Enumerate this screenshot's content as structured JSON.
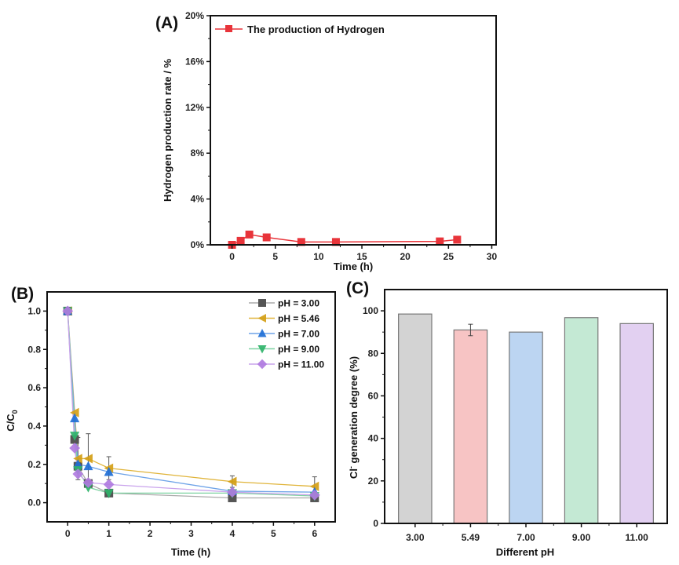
{
  "chart_data": [
    {
      "id": "A",
      "type": "line",
      "panel_label": "(A)",
      "title": "",
      "xlabel": "Time (h)",
      "ylabel": "Hydrogen production rate / %",
      "xlim": [
        -2.5,
        30.5
      ],
      "ylim": [
        0,
        20
      ],
      "xticks": [
        0,
        5,
        10,
        15,
        20,
        25,
        30
      ],
      "xtick_labels": [
        "0",
        "5",
        "10",
        "15",
        "20",
        "25",
        "30"
      ],
      "yticks": [
        0,
        4,
        8,
        12,
        16,
        20
      ],
      "ytick_labels": [
        "0%",
        "4%",
        "8%",
        "12%",
        "16%",
        "20%"
      ],
      "grid": false,
      "legend_position": "top-left",
      "series": [
        {
          "name": "The production of Hydrogen",
          "color": "#e8343a",
          "marker": "square",
          "x": [
            0,
            1,
            2,
            4,
            8,
            12,
            24,
            26
          ],
          "values": [
            0.0,
            0.35,
            0.9,
            0.65,
            0.25,
            0.25,
            0.3,
            0.45
          ]
        }
      ]
    },
    {
      "id": "B",
      "type": "line",
      "panel_label": "(B)",
      "title": "",
      "xlabel": "Time (h)",
      "ylabel": "C/C0",
      "ylabel_main": "C/C",
      "ylabel_sub": "0",
      "xlim": [
        -0.5,
        6.5
      ],
      "ylim": [
        -0.1,
        1.1
      ],
      "xticks": [
        0,
        1,
        2,
        3,
        4,
        5,
        6
      ],
      "xtick_labels": [
        "0",
        "1",
        "2",
        "3",
        "4",
        "5",
        "6"
      ],
      "yticks": [
        0.0,
        0.2,
        0.4,
        0.6,
        0.8,
        1.0
      ],
      "ytick_labels": [
        "0.0",
        "0.2",
        "0.4",
        "0.6",
        "0.8",
        "1.0"
      ],
      "grid": false,
      "legend_position": "top-right",
      "x": [
        0,
        0.17,
        0.25,
        0.5,
        1,
        4,
        6
      ],
      "series": [
        {
          "name": "pH = 3.00",
          "color": "#555555",
          "line_color": "#aaaaaa",
          "marker": "square",
          "values": [
            1.0,
            0.33,
            0.19,
            0.1,
            0.05,
            0.025,
            0.025
          ]
        },
        {
          "name": "pH = 5.46",
          "color": "#d4a017",
          "line_color": "#e0b43a",
          "marker": "triangle-left",
          "values": [
            1.0,
            0.47,
            0.23,
            0.23,
            0.18,
            0.11,
            0.085
          ],
          "error": [
            0,
            0,
            0.11,
            0.13,
            0.06,
            0.03,
            0.05
          ]
        },
        {
          "name": "pH = 7.00",
          "color": "#1f6fd6",
          "line_color": "#6fa4e8",
          "marker": "triangle-up",
          "values": [
            1.0,
            0.44,
            0.2,
            0.19,
            0.16,
            0.06,
            0.055
          ]
        },
        {
          "name": "pH = 9.00",
          "color": "#2fb36a",
          "line_color": "#7fd3a2",
          "marker": "triangle-down",
          "values": [
            1.0,
            0.35,
            0.17,
            0.08,
            0.05,
            0.05,
            0.035
          ]
        },
        {
          "name": "pH = 11.00",
          "color": "#b07be0",
          "line_color": "#c9a3ec",
          "marker": "diamond",
          "values": [
            1.0,
            0.285,
            0.15,
            0.105,
            0.095,
            0.055,
            0.04
          ]
        }
      ]
    },
    {
      "id": "C",
      "type": "bar",
      "panel_label": "(C)",
      "title": "",
      "xlabel": "Different pH",
      "ylabel": "Cl⁻ generation degree (%)",
      "ylabel_main": "Cl",
      "ylabel_sup": "-",
      "ylabel_rest": " generation degree (%)",
      "ylim": [
        0,
        110
      ],
      "yticks": [
        0,
        20,
        40,
        60,
        80,
        100
      ],
      "ytick_labels": [
        "0",
        "20",
        "40",
        "60",
        "80",
        "100"
      ],
      "grid": false,
      "categories": [
        "3.00",
        "5.49",
        "7.00",
        "9.00",
        "11.00"
      ],
      "values": [
        98.5,
        91.0,
        90.0,
        96.8,
        94.0
      ],
      "errors": [
        0,
        2.7,
        0,
        0,
        0
      ],
      "colors": [
        "#d3d3d3",
        "#f7c4c4",
        "#bcd5f2",
        "#c4e9d4",
        "#e2d0f1"
      ]
    }
  ]
}
